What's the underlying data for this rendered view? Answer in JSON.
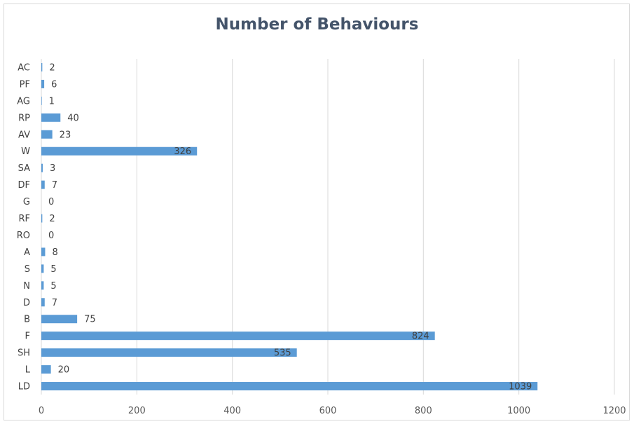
{
  "chart_data": {
    "type": "bar",
    "orientation": "horizontal",
    "title": "Number of Behaviours",
    "xlabel": "",
    "ylabel": "",
    "categories": [
      "LD",
      "L",
      "SH",
      "F",
      "B",
      "D",
      "N",
      "S",
      "A",
      "RO",
      "RF",
      "G",
      "DF",
      "SA",
      "W",
      "AV",
      "RP",
      "AG",
      "PF",
      "AC"
    ],
    "values": [
      1039,
      20,
      535,
      824,
      75,
      7,
      5,
      5,
      8,
      0,
      2,
      0,
      7,
      3,
      326,
      23,
      40,
      1,
      6,
      2
    ],
    "xlim": [
      0,
      1200
    ],
    "xticks": [
      0,
      200,
      400,
      600,
      800,
      1000,
      1200
    ],
    "grid": true,
    "legend": "none",
    "bar_color": "#5b9bd5",
    "data_labels": true
  }
}
